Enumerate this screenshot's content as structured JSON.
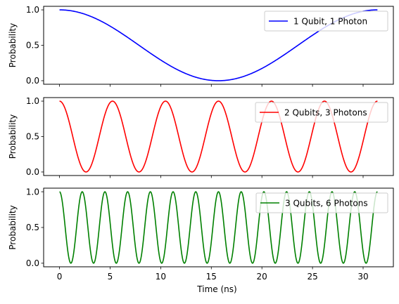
{
  "figure": {
    "background": "#ffffff"
  },
  "chart_data": [
    {
      "type": "line",
      "ylabel": "Probability",
      "xlabel": "",
      "xlim": [
        -1.57,
        32.99
      ],
      "ylim": [
        -0.05,
        1.05
      ],
      "x_ticks": [
        0,
        5,
        10,
        15,
        20,
        25,
        30
      ],
      "x_tick_labels_shown": false,
      "y_ticks": [
        0.0,
        0.5,
        1.0
      ],
      "y_tick_labels": [
        "0.0",
        "0.5",
        "1.0"
      ],
      "grid": false,
      "legend_position": "upper right",
      "series": [
        {
          "name": "1 Qubit, 1 Photon",
          "color": "#0000ff",
          "function": "cos2",
          "x_range": [
            0,
            31.4159
          ],
          "angular_frequency": 0.1,
          "period_ns": 31.42,
          "samples": 400
        }
      ]
    },
    {
      "type": "line",
      "ylabel": "Probability",
      "xlabel": "",
      "xlim": [
        -1.57,
        32.99
      ],
      "ylim": [
        -0.05,
        1.05
      ],
      "x_ticks": [
        0,
        5,
        10,
        15,
        20,
        25,
        30
      ],
      "x_tick_labels_shown": false,
      "y_ticks": [
        0.0,
        0.5,
        1.0
      ],
      "y_tick_labels": [
        "0.0",
        "0.5",
        "1.0"
      ],
      "grid": false,
      "legend_position": "upper right",
      "series": [
        {
          "name": "2 Qubits, 3 Photons",
          "color": "#ff0000",
          "function": "cos2",
          "x_range": [
            0,
            31.4159
          ],
          "angular_frequency": 0.6,
          "period_ns": 5.24,
          "samples": 600
        }
      ]
    },
    {
      "type": "line",
      "ylabel": "Probability",
      "xlabel": "Time (ns)",
      "xlim": [
        -1.57,
        32.99
      ],
      "ylim": [
        -0.05,
        1.05
      ],
      "x_ticks": [
        0,
        5,
        10,
        15,
        20,
        25,
        30
      ],
      "x_tick_labels": [
        "0",
        "5",
        "10",
        "15",
        "20",
        "25",
        "30"
      ],
      "x_tick_labels_shown": true,
      "y_ticks": [
        0.0,
        0.5,
        1.0
      ],
      "y_tick_labels": [
        "0.0",
        "0.5",
        "1.0"
      ],
      "grid": false,
      "legend_position": "upper right",
      "series": [
        {
          "name": "3 Qubits, 6 Photons",
          "color": "#008000",
          "function": "cos2",
          "x_range": [
            0,
            31.4159
          ],
          "angular_frequency": 1.4,
          "period_ns": 2.24,
          "samples": 900
        }
      ]
    }
  ]
}
